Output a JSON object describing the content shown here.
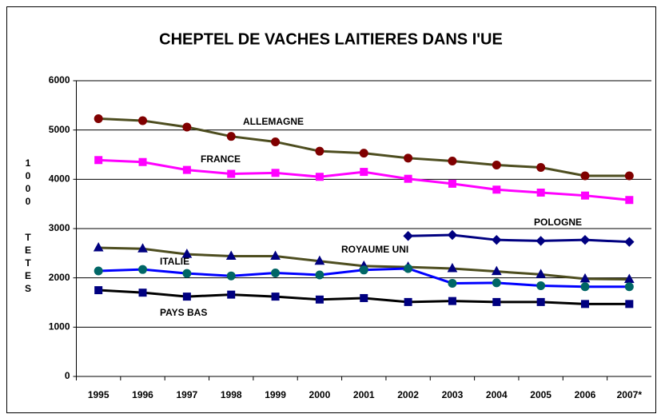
{
  "chart_data": {
    "type": "line",
    "title": "CHEPTEL DE VACHES LAITIERES DANS I'UE",
    "ylabel_chars": [
      "1",
      "0",
      "0",
      "0",
      "T",
      "E",
      "T",
      "E",
      "S"
    ],
    "categories": [
      "1995",
      "1996",
      "1997",
      "1998",
      "1999",
      "2000",
      "2001",
      "2002",
      "2003",
      "2004",
      "2005",
      "2006",
      "2007*"
    ],
    "ylim": [
      0,
      6000
    ],
    "yticks": [
      0,
      1000,
      2000,
      3000,
      4000,
      5000,
      6000
    ],
    "grid": true,
    "series": [
      {
        "name": "ALLEMAGNE",
        "color": "#4d4d1f",
        "marker_color": "#800000",
        "marker": "circle",
        "values": [
          5230,
          5190,
          5060,
          4870,
          4760,
          4570,
          4530,
          4430,
          4370,
          4290,
          4240,
          4070,
          4070
        ]
      },
      {
        "name": "FRANCE",
        "color": "#ff00ff",
        "marker_color": "#ff00ff",
        "marker": "square",
        "values": [
          4390,
          4350,
          4190,
          4110,
          4130,
          4050,
          4150,
          4010,
          3910,
          3790,
          3730,
          3670,
          3580
        ]
      },
      {
        "name": "POLOGNE",
        "color": "#000080",
        "marker_color": "#000080",
        "marker": "diamond",
        "values": [
          null,
          null,
          null,
          null,
          null,
          null,
          null,
          2850,
          2870,
          2770,
          2750,
          2770,
          2730
        ]
      },
      {
        "name": "ROYAUME UNI",
        "color": "#4d4d1f",
        "marker_color": "#000080",
        "marker": "triangle",
        "values": [
          2610,
          2590,
          2480,
          2440,
          2440,
          2340,
          2240,
          2220,
          2190,
          2130,
          2070,
          1980,
          1970
        ]
      },
      {
        "name": "ITALIE",
        "color": "#0000ff",
        "marker_color": "#006666",
        "marker": "circle",
        "values": [
          2140,
          2170,
          2090,
          2040,
          2100,
          2060,
          2160,
          2190,
          1890,
          1900,
          1840,
          1820,
          1820
        ]
      },
      {
        "name": "PAYS BAS",
        "color": "#000000",
        "marker_color": "#000080",
        "marker": "square",
        "values": [
          1750,
          1700,
          1620,
          1660,
          1620,
          1560,
          1590,
          1510,
          1530,
          1510,
          1510,
          1470,
          1470
        ]
      }
    ]
  }
}
